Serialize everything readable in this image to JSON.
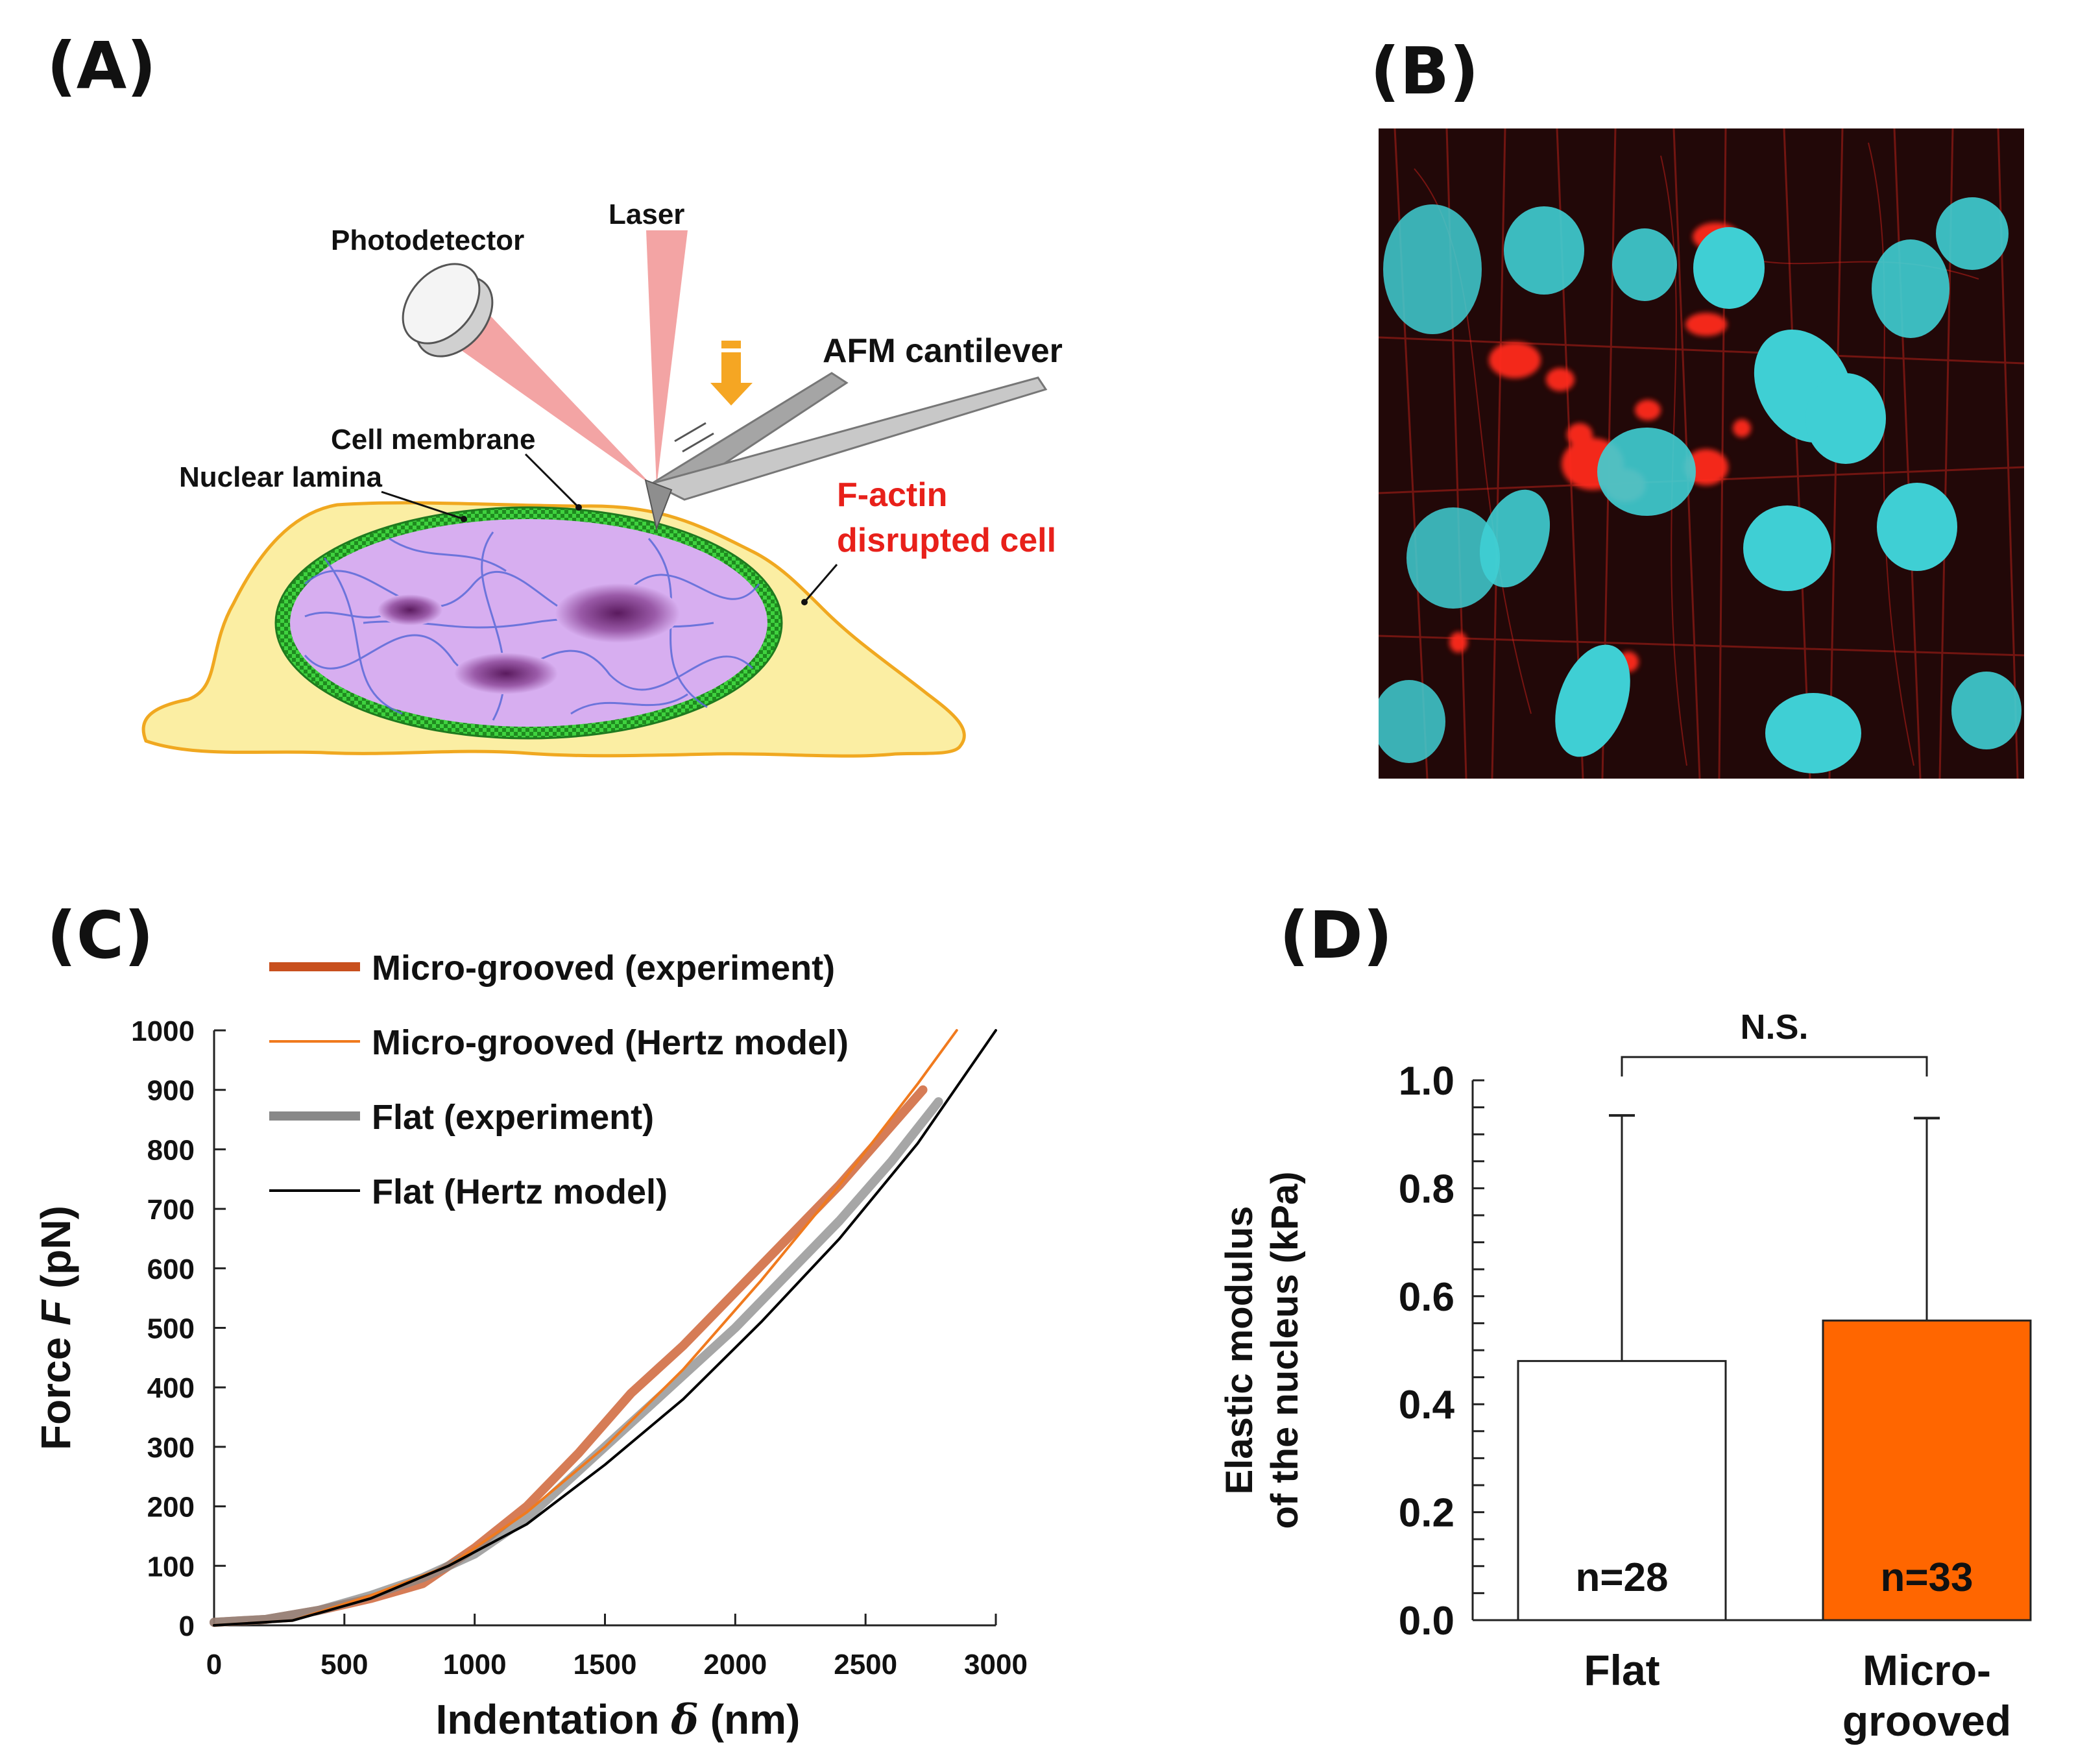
{
  "panels": {
    "a": {
      "label": "(A)",
      "labels": {
        "photodetector": "Photodetector",
        "laser": "Laser",
        "cantilever": "AFM cantilever",
        "cell_membrane": "Cell membrane",
        "nuclear_lamina": "Nuclear lamina",
        "factin_line1": "F-actin",
        "factin_line2": "disrupted cell"
      },
      "colors": {
        "cell_body": "#fbeea3",
        "cell_outline": "#f0a820",
        "nucleus": "#d7aef0",
        "lamina": "#3fd23f",
        "chromatin": "#5a6ad8",
        "laser": "#f29a9a",
        "arrow": "#f5a623",
        "factin_text": "#e8201a"
      }
    },
    "b": {
      "label": "(B)",
      "colors": {
        "background": "#200808",
        "actin": "#e0241c",
        "nuclei": "#3fcfd4"
      }
    },
    "c": {
      "label": "(C)"
    },
    "d": {
      "label": "(D)"
    }
  },
  "chart_data": [
    {
      "type": "line",
      "panel": "C",
      "xlabel_prefix": "Indentation ",
      "xlabel_symbol": "δ",
      "xlabel_suffix": " (nm)",
      "ylabel_prefix": "Force ",
      "ylabel_symbol": "F",
      "ylabel_suffix": " (pN)",
      "xlim": [
        0,
        3000
      ],
      "ylim": [
        0,
        1000
      ],
      "xticks": [
        "0",
        "500",
        "1000",
        "1500",
        "2000",
        "2500",
        "3000"
      ],
      "yticks": [
        "0",
        "100",
        "200",
        "300",
        "400",
        "500",
        "600",
        "700",
        "800",
        "900",
        "1000"
      ],
      "legend": [
        {
          "label": "Micro-grooved (experiment)",
          "color": "#c8501e",
          "style": "thick"
        },
        {
          "label": "Micro-grooved (Hertz model)",
          "color": "#f07a1e",
          "style": "thin"
        },
        {
          "label": "Flat (experiment)",
          "color": "#888888",
          "style": "thick"
        },
        {
          "label": "Flat (Hertz model)",
          "color": "#000000",
          "style": "thin"
        }
      ],
      "series": [
        {
          "name": "Micro-grooved (experiment)",
          "color": "#c8501e",
          "x": [
            0,
            200,
            400,
            600,
            800,
            1000,
            1200,
            1400,
            1600,
            1800,
            2000,
            2200,
            2400,
            2600,
            2720
          ],
          "y": [
            5,
            10,
            25,
            45,
            70,
            130,
            200,
            290,
            390,
            470,
            560,
            650,
            740,
            840,
            900
          ]
        },
        {
          "name": "Micro-grooved (Hertz model)",
          "color": "#f07a1e",
          "x": [
            0,
            300,
            600,
            900,
            1200,
            1500,
            1800,
            2100,
            2400,
            2700,
            2850
          ],
          "y": [
            0,
            8,
            50,
            100,
            190,
            300,
            430,
            580,
            740,
            910,
            1000
          ]
        },
        {
          "name": "Flat (experiment)",
          "color": "#888888",
          "x": [
            0,
            200,
            400,
            600,
            800,
            1000,
            1200,
            1400,
            1600,
            1800,
            2000,
            2200,
            2400,
            2600,
            2780
          ],
          "y": [
            5,
            10,
            25,
            50,
            80,
            120,
            180,
            260,
            340,
            420,
            500,
            590,
            680,
            780,
            880
          ]
        },
        {
          "name": "Flat (Hertz model)",
          "color": "#000000",
          "x": [
            0,
            300,
            600,
            900,
            1200,
            1500,
            1800,
            2100,
            2400,
            2700,
            3000
          ],
          "y": [
            0,
            8,
            45,
            100,
            170,
            270,
            380,
            510,
            650,
            810,
            1000
          ]
        }
      ]
    },
    {
      "type": "bar",
      "panel": "D",
      "categories": [
        "Flat",
        "Micro-grooved"
      ],
      "category_lines": [
        [
          "Flat"
        ],
        [
          "Micro-",
          "grooved"
        ]
      ],
      "values": [
        0.48,
        0.555
      ],
      "errors": [
        0.455,
        0.375
      ],
      "colors": [
        "#ffffff",
        "#ff6600"
      ],
      "annotations": [
        "n=28",
        "n=33"
      ],
      "significance": "N.S.",
      "ylabel_lines": [
        "Elastic modulus",
        "of the nucleus (kPa)"
      ],
      "ylim": [
        0,
        1.0
      ],
      "yticks": [
        "0.0",
        "0.2",
        "0.4",
        "0.6",
        "0.8",
        "1.0"
      ],
      "xlabel": ""
    }
  ]
}
